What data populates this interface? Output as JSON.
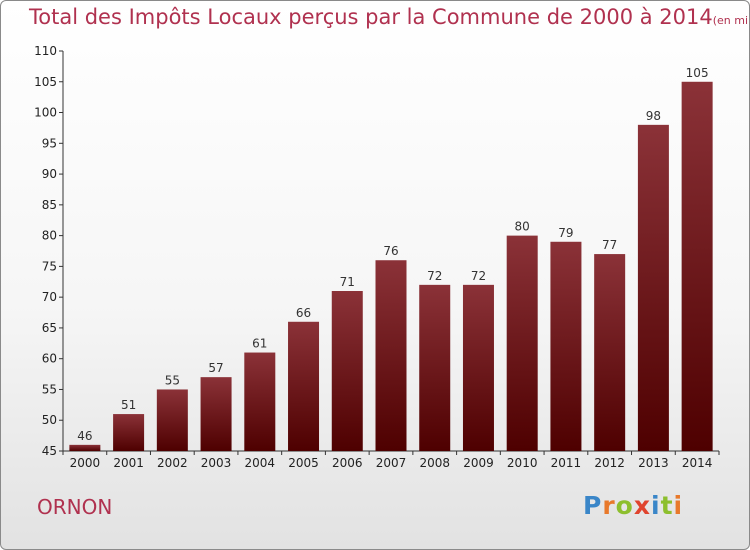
{
  "title": {
    "main": "Total des Impôts Locaux perçus par la Commune de 2000 à 2014",
    "unit": "(en milliers d'€)"
  },
  "commune": "ORNON",
  "logo": {
    "text": "Proxiti",
    "letters": [
      {
        "char": "P",
        "color": "#3a86c8"
      },
      {
        "char": "r",
        "color": "#e8792b"
      },
      {
        "char": "o",
        "color": "#8dbf2e"
      },
      {
        "char": "x",
        "color": "#e0442e"
      },
      {
        "char": "i",
        "color": "#3a86c8"
      },
      {
        "char": "t",
        "color": "#8dbf2e"
      },
      {
        "char": "i",
        "color": "#e8792b"
      }
    ]
  },
  "chart_data": {
    "type": "bar",
    "title": "Total des Impôts Locaux perçus par la Commune de 2000 à 2014",
    "xlabel": "",
    "ylabel": "",
    "categories": [
      "2000",
      "2001",
      "2002",
      "2003",
      "2004",
      "2005",
      "2006",
      "2007",
      "2008",
      "2009",
      "2010",
      "2011",
      "2012",
      "2013",
      "2014"
    ],
    "values": [
      46,
      51,
      55,
      57,
      61,
      66,
      71,
      76,
      72,
      72,
      80,
      79,
      77,
      98,
      105
    ],
    "ylim": [
      45,
      110
    ],
    "yticks": [
      45,
      50,
      55,
      60,
      65,
      70,
      75,
      80,
      85,
      90,
      95,
      100,
      105,
      110
    ],
    "grid": false,
    "bar_color_top": "#8b3238",
    "bar_color_bottom": "#4e0000"
  }
}
